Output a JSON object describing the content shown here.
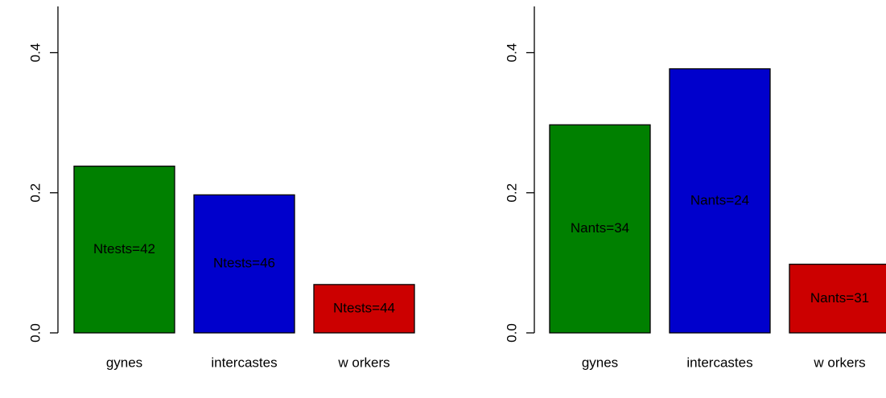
{
  "chart_data": [
    {
      "type": "bar",
      "categories": [
        "gynes",
        "intercastes",
        "w orkers"
      ],
      "values": [
        0.238,
        0.197,
        0.069
      ],
      "colors": [
        "#008000",
        "#0000cc",
        "#cc0000"
      ],
      "annotations": [
        "Ntests=42",
        "Ntests=46",
        "Ntests=44"
      ],
      "ylim": [
        0,
        0.466
      ],
      "yticks": [
        {
          "value": 0,
          "label": "0.0"
        },
        0.2,
        0.4
      ]
    },
    {
      "type": "bar",
      "categories": [
        "gynes",
        "intercastes",
        "w orkers"
      ],
      "values": [
        0.297,
        0.377,
        0.098
      ],
      "colors": [
        "#008000",
        "#0000cc",
        "#cc0000"
      ],
      "annotations": [
        "Nants=34",
        "Nants=24",
        "Nants=31"
      ],
      "ylim": [
        0,
        0.466
      ],
      "yticks": [
        {
          "value": 0,
          "label": "0.0"
        },
        0.2,
        0.4
      ]
    }
  ]
}
